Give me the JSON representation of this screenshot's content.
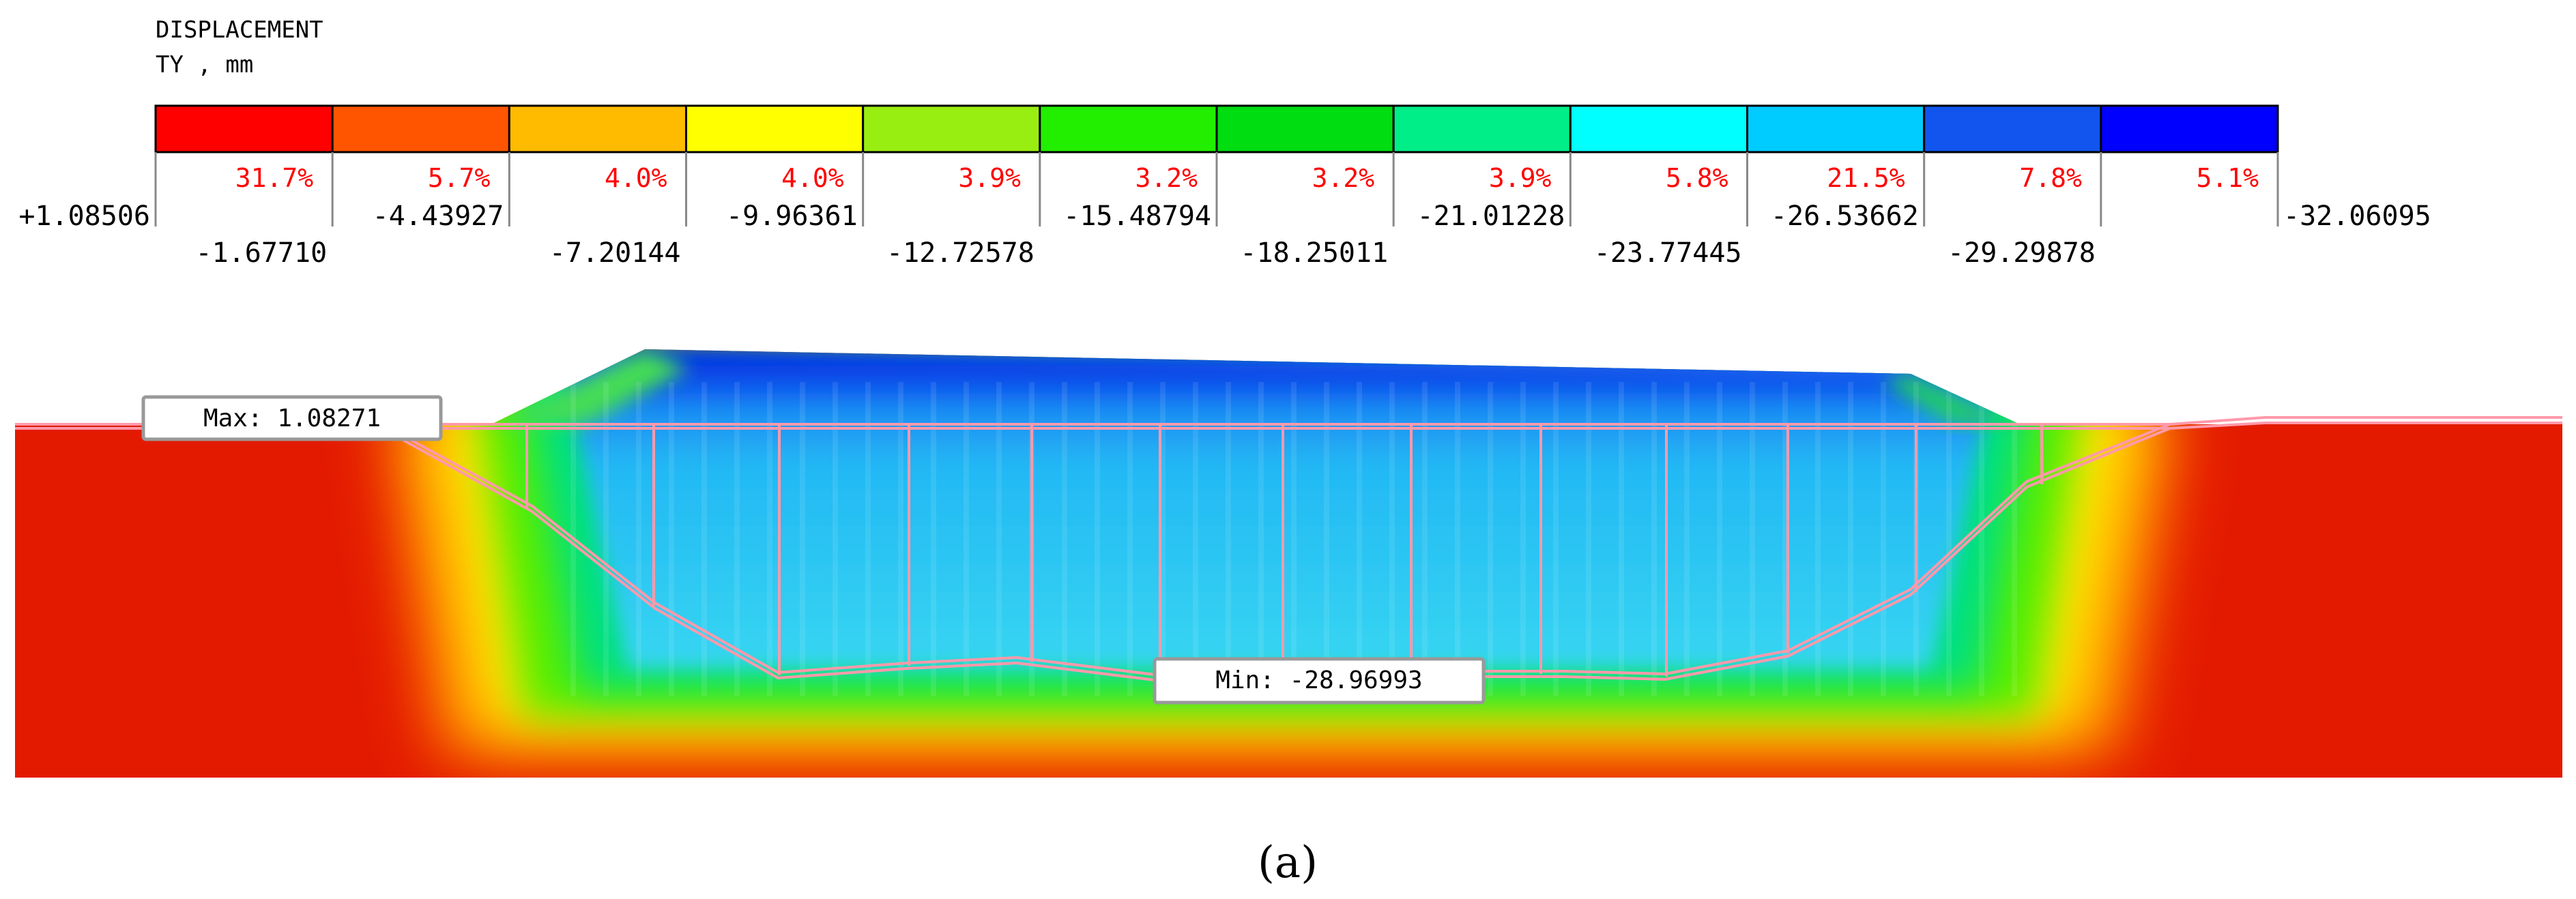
{
  "header": {
    "title": "DISPLACEMENT",
    "subtitle": "TY , mm"
  },
  "legend": {
    "bands": [
      {
        "color": "#ff0000",
        "percent": "31.7%"
      },
      {
        "color": "#ff5500",
        "percent": "5.7%"
      },
      {
        "color": "#ffbb00",
        "percent": "4.0%"
      },
      {
        "color": "#ffff00",
        "percent": "4.0%"
      },
      {
        "color": "#99ee11",
        "percent": "3.9%"
      },
      {
        "color": "#22ee00",
        "percent": "3.2%"
      },
      {
        "color": "#00dd11",
        "percent": "3.2%"
      },
      {
        "color": "#00ee88",
        "percent": "3.9%"
      },
      {
        "color": "#00ffff",
        "percent": "5.8%"
      },
      {
        "color": "#00ccff",
        "percent": "21.5%"
      },
      {
        "color": "#1155ee",
        "percent": "7.8%"
      },
      {
        "color": "#0000ff",
        "percent": "5.1%"
      }
    ],
    "ticks": [
      "+1.08506",
      "-1.67710",
      "-4.43927",
      "-7.20144",
      "-9.96361",
      "-12.72578",
      "-15.48794",
      "-18.25011",
      "-21.01228",
      "-23.77445",
      "-26.53662",
      "-29.29878",
      "-32.06095"
    ],
    "percent_color": "#ff0000"
  },
  "model": {
    "max_label": "Max: 1.08271",
    "min_label": "Min: -28.96993",
    "mesh_color": "#ff99aa",
    "field_colors": {
      "outer": "#e31a00",
      "ring_orange": "#ff7a00",
      "ring_yellow": "#ffee00",
      "ring_green": "#33ee00",
      "core": "#33ccff",
      "top": "#0033ee"
    }
  },
  "caption": "(a)"
}
